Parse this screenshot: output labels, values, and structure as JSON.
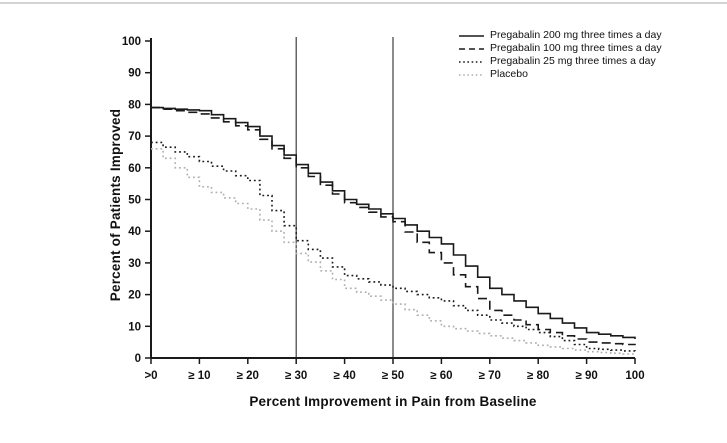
{
  "figure": {
    "background_color": "#ffffff",
    "top_border_color": "#d4d4d4",
    "axis_color": "#1a1a1a",
    "tick_label_color": "#111111",
    "reference_line_color": "#404040"
  },
  "chart_data": {
    "type": "line",
    "title": "",
    "xlabel": "Percent Improvement in Pain from Baseline",
    "ylabel": "Percent of Patients Improved",
    "x_tick_labels": [
      ">0",
      "≥ 10",
      "≥ 20",
      "≥ 30",
      "≥ 40",
      "≥ 50",
      "≥ 60",
      "≥ 70",
      "≥ 80",
      "≥ 90",
      "100"
    ],
    "y_ticks": [
      0,
      10,
      20,
      30,
      40,
      50,
      60,
      70,
      80,
      90,
      100
    ],
    "ylim": [
      0,
      100
    ],
    "grid": false,
    "legend_position": "top-right",
    "reference_lines_x": [
      "≥ 30",
      "≥ 50"
    ],
    "series": [
      {
        "name": "Pregabalin 200 mg three times a day",
        "style": "solid",
        "color": "#1a1a1a",
        "values": [
          79,
          78,
          73,
          61,
          50,
          44,
          36,
          22,
          14,
          8,
          6
        ]
      },
      {
        "name": "Pregabalin 100 mg three times a day",
        "style": "dashed",
        "color": "#1a1a1a",
        "values": [
          79,
          77,
          72,
          60,
          49,
          43,
          30,
          15,
          9,
          5,
          4
        ]
      },
      {
        "name": "Pregabalin 25 mg three times a day",
        "style": "dotted",
        "color": "#1a1a1a",
        "values": [
          68,
          62,
          56,
          37,
          26,
          22,
          18,
          12,
          8,
          3,
          2
        ]
      },
      {
        "name": "Placebo",
        "style": "dotted",
        "color": "#b0b0b0",
        "values": [
          66,
          54,
          47,
          33,
          22,
          17,
          10,
          7,
          4,
          2,
          1
        ]
      }
    ]
  }
}
